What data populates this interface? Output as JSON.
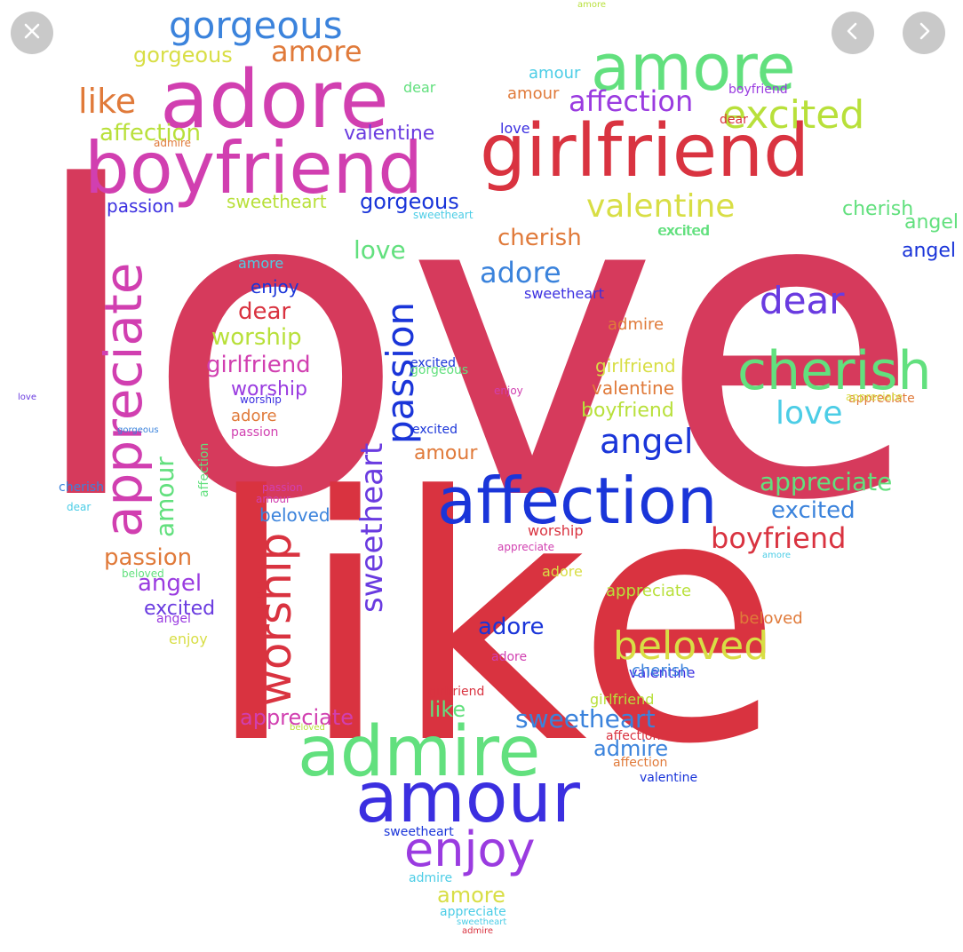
{
  "controls": {
    "close_icon": "close-icon",
    "prev_icon": "chevron-left-icon",
    "next_icon": "chevron-right-icon"
  },
  "colors": {
    "crimson": "#d63a5c",
    "red": "#d93340",
    "blue": "#1a35d9",
    "indigo": "#3b2fe0",
    "purple": "#9a3be0",
    "magenta": "#d13fb0",
    "orange": "#e07a3a",
    "green": "#62e07e",
    "lime": "#b8e03a",
    "yellow": "#d8de45",
    "cyan": "#4ccde6",
    "sky": "#3b83dc",
    "violet": "#6a3be0"
  },
  "words": [
    {
      "text": "love",
      "color": "crimson"
    },
    {
      "text": "like",
      "color": "red"
    },
    {
      "text": "boyfriend",
      "color": "magenta"
    },
    {
      "text": "girlfriend",
      "color": "red"
    },
    {
      "text": "adore",
      "color": "magenta"
    },
    {
      "text": "amore",
      "color": "green"
    },
    {
      "text": "affection",
      "color": "blue"
    },
    {
      "text": "admire",
      "color": "green"
    },
    {
      "text": "amour",
      "color": "indigo"
    },
    {
      "text": "enjoy",
      "color": "purple"
    },
    {
      "text": "cherish",
      "color": "green"
    },
    {
      "text": "gorgeous",
      "color": "sky"
    },
    {
      "text": "gorgeous",
      "color": "yellow"
    },
    {
      "text": "amore",
      "color": "orange"
    },
    {
      "text": "like",
      "color": "orange"
    },
    {
      "text": "affection",
      "color": "lime"
    },
    {
      "text": "excited",
      "color": "lime"
    },
    {
      "text": "valentine",
      "color": "yellow"
    },
    {
      "text": "affection",
      "color": "purple"
    },
    {
      "text": "appreciate",
      "color": "magenta"
    },
    {
      "text": "passion",
      "color": "blue"
    },
    {
      "text": "worship",
      "color": "red"
    },
    {
      "text": "sweetheart",
      "color": "violet"
    },
    {
      "text": "angel",
      "color": "blue"
    },
    {
      "text": "dear",
      "color": "violet"
    },
    {
      "text": "beloved",
      "color": "yellow"
    },
    {
      "text": "boyfriend",
      "color": "red"
    },
    {
      "text": "appreciate",
      "color": "green"
    },
    {
      "text": "excited",
      "color": "sky"
    },
    {
      "text": "sweetheart",
      "color": "sky"
    },
    {
      "text": "admire",
      "color": "sky"
    },
    {
      "text": "appreciate",
      "color": "magenta"
    },
    {
      "text": "passion",
      "color": "orange"
    },
    {
      "text": "angel",
      "color": "purple"
    },
    {
      "text": "excited",
      "color": "violet"
    },
    {
      "text": "beloved",
      "color": "sky"
    },
    {
      "text": "adore",
      "color": "sky"
    },
    {
      "text": "sweetheart",
      "color": "lime"
    },
    {
      "text": "gorgeous",
      "color": "blue"
    },
    {
      "text": "valentine",
      "color": "violet"
    },
    {
      "text": "cherish",
      "color": "orange"
    },
    {
      "text": "adore",
      "color": "blue"
    },
    {
      "text": "dear",
      "color": "red"
    },
    {
      "text": "worship",
      "color": "lime"
    },
    {
      "text": "girlfriend",
      "color": "magenta"
    },
    {
      "text": "worship",
      "color": "purple"
    },
    {
      "text": "love",
      "color": "green"
    },
    {
      "text": "enjoy",
      "color": "blue"
    },
    {
      "text": "amore",
      "color": "cyan"
    },
    {
      "text": "adore",
      "color": "orange"
    },
    {
      "text": "angel",
      "color": "blue"
    },
    {
      "text": "boyfriend",
      "color": "lime"
    },
    {
      "text": "valentine",
      "color": "orange"
    },
    {
      "text": "girlfriend",
      "color": "yellow"
    },
    {
      "text": "love",
      "color": "cyan"
    },
    {
      "text": "dear",
      "color": "violet"
    },
    {
      "text": "angel",
      "color": "green"
    },
    {
      "text": "cherish",
      "color": "green"
    },
    {
      "text": "excited",
      "color": "green"
    },
    {
      "text": "amour",
      "color": "orange"
    },
    {
      "text": "gorgeous",
      "color": "green"
    },
    {
      "text": "love",
      "color": "indigo"
    },
    {
      "text": "excited",
      "color": "green"
    },
    {
      "text": "dear",
      "color": "green"
    },
    {
      "text": "valentine",
      "color": "indigo"
    },
    {
      "text": "admire",
      "color": "orange"
    },
    {
      "text": "appreciate",
      "color": "orange"
    },
    {
      "text": "amour",
      "color": "green"
    },
    {
      "text": "passion",
      "color": "indigo"
    },
    {
      "text": "sweetheart",
      "color": "indigo"
    },
    {
      "text": "worship",
      "color": "red"
    },
    {
      "text": "appreciate",
      "color": "lime"
    },
    {
      "text": "amore",
      "color": "lime"
    },
    {
      "text": "adore",
      "color": "magenta"
    },
    {
      "text": "excited",
      "color": "blue"
    },
    {
      "text": "beloved",
      "color": "orange"
    },
    {
      "text": "amour",
      "color": "orange"
    },
    {
      "text": "appreciate",
      "color": "magenta"
    },
    {
      "text": "sweetheart",
      "color": "blue"
    },
    {
      "text": "admire",
      "color": "cyan"
    },
    {
      "text": "valentine",
      "color": "blue"
    },
    {
      "text": "enjoy",
      "color": "yellow"
    },
    {
      "text": "amore",
      "color": "yellow"
    },
    {
      "text": "appreciate",
      "color": "cyan"
    },
    {
      "text": "like",
      "color": "green"
    },
    {
      "text": "cherish",
      "color": "sky"
    },
    {
      "text": "sweetheart",
      "color": "cyan"
    },
    {
      "text": "admire",
      "color": "red"
    },
    {
      "text": "affection",
      "color": "orange"
    },
    {
      "text": "dear",
      "color": "red"
    },
    {
      "text": "passion",
      "color": "magenta"
    },
    {
      "text": "girlfriend",
      "color": "red"
    },
    {
      "text": "boyfriend",
      "color": "purple"
    },
    {
      "text": "amour",
      "color": "cyan"
    },
    {
      "text": "affection",
      "color": "green"
    },
    {
      "text": "admire",
      "color": "orange"
    },
    {
      "text": "angel",
      "color": "purple"
    },
    {
      "text": "gorgeous",
      "color": "sky"
    },
    {
      "text": "sweetheart",
      "color": "cyan"
    },
    {
      "text": "cherish",
      "color": "sky"
    },
    {
      "text": "beloved",
      "color": "lime"
    },
    {
      "text": "passion",
      "color": "magenta"
    },
    {
      "text": "amour",
      "color": "magenta"
    },
    {
      "text": "dear",
      "color": "cyan"
    },
    {
      "text": "excited",
      "color": "blue"
    },
    {
      "text": "worship",
      "color": "indigo"
    },
    {
      "text": "love",
      "color": "violet"
    },
    {
      "text": "affection",
      "color": "red"
    },
    {
      "text": "amore",
      "color": "cyan"
    },
    {
      "text": "girlfriend",
      "color": "lime"
    },
    {
      "text": "adore",
      "color": "yellow"
    },
    {
      "text": "beloved",
      "color": "green"
    },
    {
      "text": "appreciate",
      "color": "yellow"
    },
    {
      "text": "enjoy",
      "color": "magenta"
    }
  ]
}
